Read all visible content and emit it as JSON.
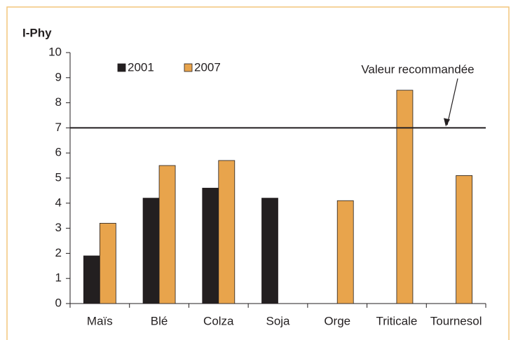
{
  "chart_data": {
    "type": "bar",
    "y_label": "I-Phy",
    "categories": [
      "Maïs",
      "Blé",
      "Colza",
      "Soja",
      "Orge",
      "Triticale",
      "Tournesol"
    ],
    "series": [
      {
        "name": "2001",
        "color": "#231f20",
        "values": [
          1.9,
          4.2,
          4.6,
          4.2,
          null,
          null,
          null
        ]
      },
      {
        "name": "2007",
        "color": "#e8a44c",
        "values": [
          3.2,
          5.5,
          5.7,
          null,
          4.1,
          8.5,
          5.1
        ]
      }
    ],
    "reference": {
      "value": 7,
      "label": "Valeur recommandée"
    },
    "ylim": [
      0,
      10
    ],
    "yticks": [
      0,
      1,
      2,
      3,
      4,
      5,
      6,
      7,
      8,
      9,
      10
    ],
    "legend": "top-left"
  }
}
